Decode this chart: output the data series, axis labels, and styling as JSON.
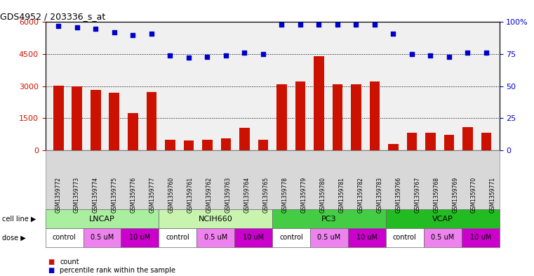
{
  "title": "GDS4952 / 203336_s_at",
  "samples": [
    "GSM1359772",
    "GSM1359773",
    "GSM1359774",
    "GSM1359775",
    "GSM1359776",
    "GSM1359777",
    "GSM1359760",
    "GSM1359761",
    "GSM1359762",
    "GSM1359763",
    "GSM1359764",
    "GSM1359765",
    "GSM1359778",
    "GSM1359779",
    "GSM1359780",
    "GSM1359781",
    "GSM1359782",
    "GSM1359783",
    "GSM1359766",
    "GSM1359767",
    "GSM1359768",
    "GSM1359769",
    "GSM1359770",
    "GSM1359771"
  ],
  "counts": [
    3020,
    3000,
    2820,
    2680,
    1750,
    2720,
    490,
    450,
    500,
    540,
    1050,
    480,
    3080,
    3230,
    4400,
    3100,
    3100,
    3220,
    290,
    830,
    830,
    710,
    1080,
    830
  ],
  "percentile_ranks": [
    97,
    96,
    95,
    92,
    90,
    91,
    74,
    72,
    73,
    74,
    76,
    75,
    98,
    98,
    98,
    98,
    98,
    98,
    91,
    75,
    74,
    73,
    76,
    76
  ],
  "cell_lines": [
    {
      "label": "LNCAP",
      "start": 0,
      "end": 6,
      "color": "#aaeea0"
    },
    {
      "label": "NCIH660",
      "start": 6,
      "end": 12,
      "color": "#c8f4b0"
    },
    {
      "label": "PC3",
      "start": 12,
      "end": 18,
      "color": "#44cc44"
    },
    {
      "label": "VCAP",
      "start": 18,
      "end": 24,
      "color": "#22bb22"
    }
  ],
  "doses": [
    {
      "label": "control",
      "start": 0,
      "end": 2,
      "color": "#ffffff"
    },
    {
      "label": "0.5 uM",
      "start": 2,
      "end": 4,
      "color": "#ee82ee"
    },
    {
      "label": "10 uM",
      "start": 4,
      "end": 6,
      "color": "#cc00cc"
    },
    {
      "label": "control",
      "start": 6,
      "end": 8,
      "color": "#ffffff"
    },
    {
      "label": "0.5 uM",
      "start": 8,
      "end": 10,
      "color": "#ee82ee"
    },
    {
      "label": "10 uM",
      "start": 10,
      "end": 12,
      "color": "#cc00cc"
    },
    {
      "label": "control",
      "start": 12,
      "end": 14,
      "color": "#ffffff"
    },
    {
      "label": "0.5 uM",
      "start": 14,
      "end": 16,
      "color": "#ee82ee"
    },
    {
      "label": "10 uM",
      "start": 16,
      "end": 18,
      "color": "#cc00cc"
    },
    {
      "label": "control",
      "start": 18,
      "end": 20,
      "color": "#ffffff"
    },
    {
      "label": "0.5 uM",
      "start": 20,
      "end": 22,
      "color": "#ee82ee"
    },
    {
      "label": "10 uM",
      "start": 22,
      "end": 24,
      "color": "#cc00cc"
    }
  ],
  "bar_color": "#cc1100",
  "dot_color": "#0000cc",
  "ylim_left": [
    0,
    6000
  ],
  "yticks_left": [
    0,
    1500,
    3000,
    4500,
    6000
  ],
  "ylim_right": [
    0,
    100
  ],
  "yticks_right": [
    0,
    25,
    50,
    75,
    100
  ],
  "bar_width": 0.55,
  "plot_bg": "#f0f0f0",
  "xtick_bg": "#d8d8d8",
  "grid_color": "#000000",
  "cell_line_colors_list": [
    "#aaeea0",
    "#c8f4b0",
    "#44cc44",
    "#22bb22"
  ],
  "dose_colors_list": [
    "#ffffff",
    "#ee82ee",
    "#cc00cc"
  ]
}
